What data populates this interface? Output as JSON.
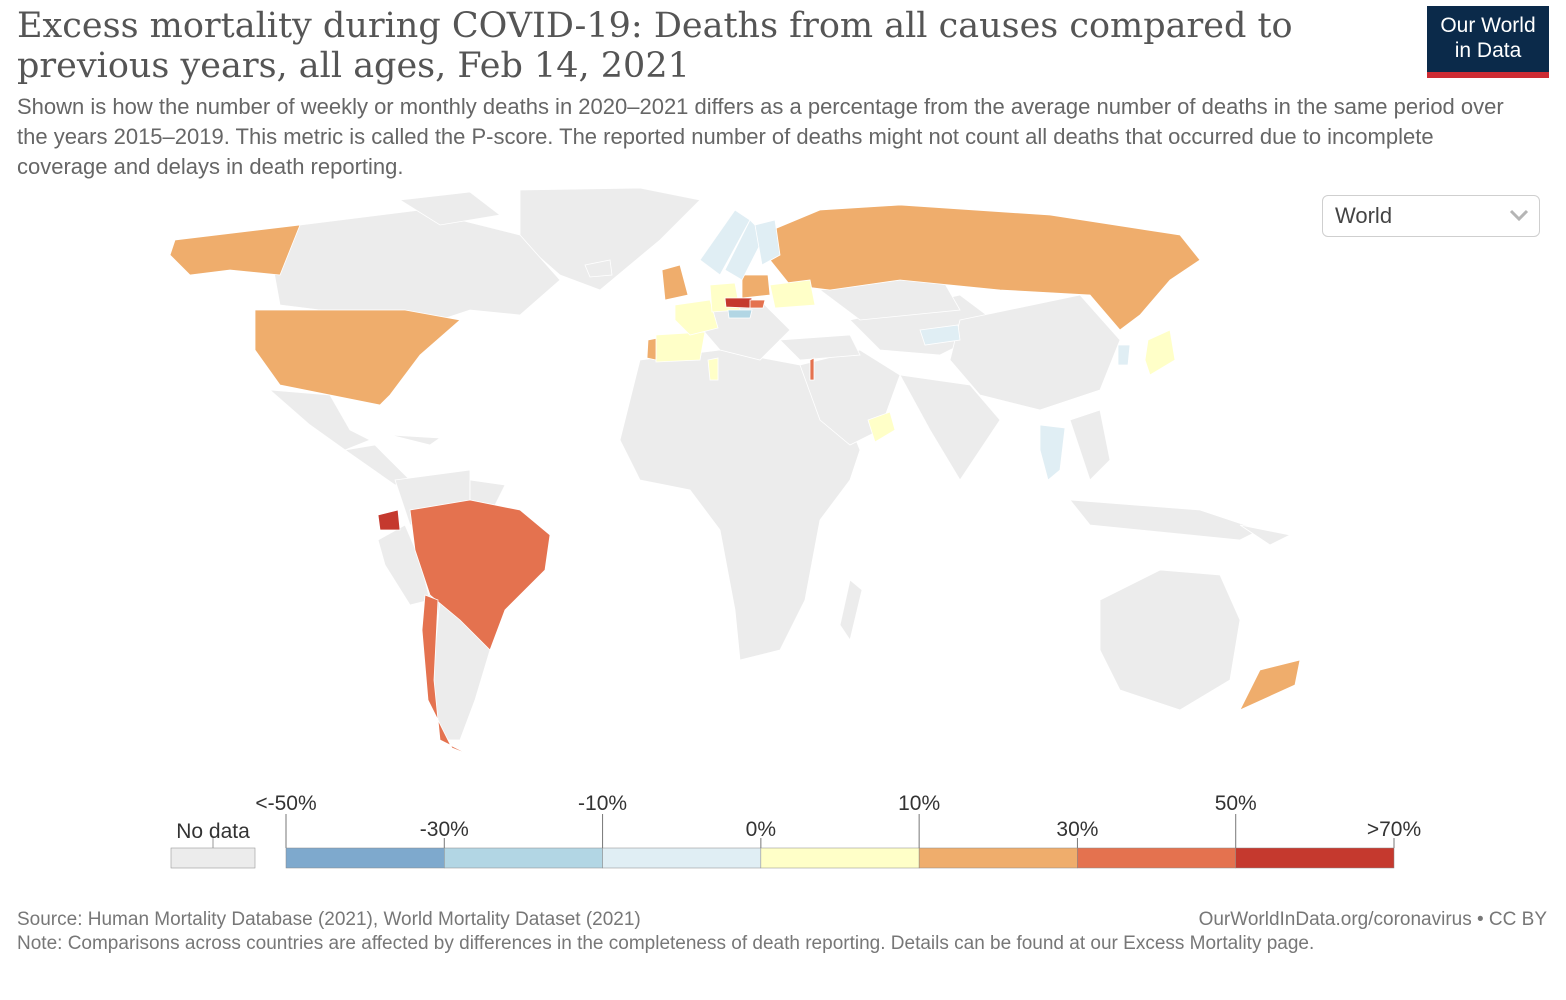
{
  "header": {
    "title": "Excess mortality during COVID-19: Deaths from all causes compared to previous years, all ages, Feb 14, 2021",
    "subtitle": "Shown is how the number of weekly or monthly deaths in 2020–2021 differs as a percentage from the average number of deaths in the same period over the years 2015–2019. This metric is called the P-score. The reported number of deaths might not count all deaths that occurred due to incomplete coverage and delays in death reporting."
  },
  "logo": {
    "line1": "Our World",
    "line2": "in Data"
  },
  "region_select": {
    "value": "World"
  },
  "legend": {
    "no_data_label": "No data",
    "bins": [
      {
        "color": "#7ea9cd"
      },
      {
        "color": "#b2d6e4"
      },
      {
        "color": "#e0eef4"
      },
      {
        "color": "#ffffc8"
      },
      {
        "color": "#efad6c"
      },
      {
        "color": "#e4724f"
      },
      {
        "color": "#c5392e"
      }
    ],
    "tick_labels": [
      "<-50%",
      "-30%",
      "-10%",
      "0%",
      "10%",
      "30%",
      "50%",
      ">70%"
    ]
  },
  "colors": {
    "no_data": "#ececec",
    "very_low": "#7ea9cd",
    "low": "#b2d6e4",
    "slightly_low": "#e0eef4",
    "near_zero": "#ffffc8",
    "moderate": "#efad6c",
    "high": "#e4724f",
    "very_high": "#c5392e",
    "border": "#ffffff"
  },
  "chart_data": {
    "type": "choropleth",
    "metric": "P-score (excess mortality %)",
    "date": "Feb 14, 2021",
    "regions": [
      {
        "name": "United States",
        "bin": "10% to 30%"
      },
      {
        "name": "Alaska",
        "bin": "10% to 30%"
      },
      {
        "name": "Russia",
        "bin": "10% to 30%"
      },
      {
        "name": "United Kingdom",
        "bin": "10% to 30%"
      },
      {
        "name": "Portugal",
        "bin": "10% to 30%"
      },
      {
        "name": "Poland",
        "bin": "10% to 30%"
      },
      {
        "name": "Czechia",
        "bin": "50% to 70%"
      },
      {
        "name": "Slovakia",
        "bin": "30% to 50%"
      },
      {
        "name": "Spain",
        "bin": "0% to 10%"
      },
      {
        "name": "France",
        "bin": "0% to 10%"
      },
      {
        "name": "Germany",
        "bin": "0% to 10%"
      },
      {
        "name": "Ukraine",
        "bin": "0% to 10%"
      },
      {
        "name": "Tunisia",
        "bin": "0% to 10%"
      },
      {
        "name": "Oman",
        "bin": "0% to 10%"
      },
      {
        "name": "Japan",
        "bin": "0% to 10%"
      },
      {
        "name": "Israel",
        "bin": "30% to 50%"
      },
      {
        "name": "Norway",
        "bin": "-10% to 0%"
      },
      {
        "name": "Sweden",
        "bin": "-10% to 0%"
      },
      {
        "name": "Finland",
        "bin": "-10% to 0%"
      },
      {
        "name": "Austria",
        "bin": "-30% to -10%"
      },
      {
        "name": "Thailand",
        "bin": "-10% to 0%"
      },
      {
        "name": "South Korea",
        "bin": "-10% to 0%"
      },
      {
        "name": "Mongolia",
        "bin": "-10% to 0%"
      },
      {
        "name": "Brazil",
        "bin": "30% to 50%"
      },
      {
        "name": "Chile",
        "bin": "30% to 50%"
      },
      {
        "name": "Ecuador",
        "bin": ">70%"
      },
      {
        "name": "New Zealand",
        "bin": "10% to 30%"
      }
    ]
  },
  "footer": {
    "source": "Source: Human Mortality Database (2021), World Mortality Dataset (2021)",
    "link": "OurWorldInData.org/coronavirus • CC BY",
    "note": "Note: Comparisons across countries are affected by differences in the completeness of death reporting. Details can be found at our Excess Mortality page."
  }
}
